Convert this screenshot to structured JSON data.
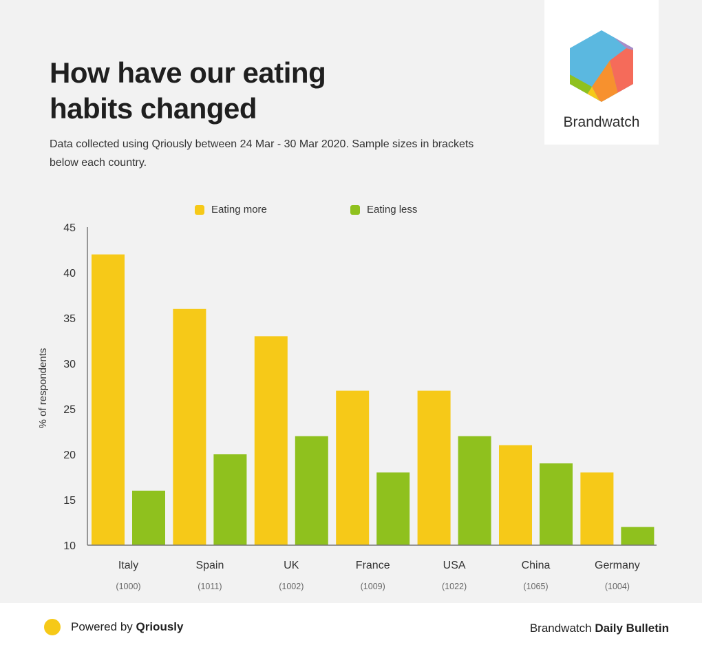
{
  "header": {
    "title_line1": "How have our eating",
    "title_line2": "habits changed",
    "subtitle": "Data collected using Qriously between 24 Mar - 30 Mar 2020. Sample sizes in brackets below each country."
  },
  "logo": {
    "text": "Brandwatch"
  },
  "footer": {
    "powered_prefix": "Powered by ",
    "powered_brand": "Qriously",
    "right_prefix": "Brandwatch ",
    "right_bold": "Daily Bulletin"
  },
  "colors": {
    "eating_more": "#f6c918",
    "eating_less": "#8fc11e"
  },
  "chart_data": {
    "type": "bar",
    "categories": [
      "Italy",
      "Spain",
      "UK",
      "France",
      "USA",
      "China",
      "Germany"
    ],
    "sample_sizes": [
      "(1000)",
      "(1011)",
      "(1002)",
      "(1009)",
      "(1022)",
      "(1065)",
      "(1004)"
    ],
    "series": [
      {
        "name": "Eating more",
        "values": [
          42,
          36,
          33,
          27,
          27,
          21,
          18
        ]
      },
      {
        "name": "Eating less",
        "values": [
          16,
          20,
          22,
          18,
          22,
          19,
          12
        ]
      }
    ],
    "ylabel": "% of respondents",
    "ylim": [
      10,
      45
    ],
    "yticks": [
      "10",
      "15",
      "20",
      "25",
      "30",
      "35",
      "40",
      "45"
    ],
    "grid": false,
    "legend": "top-center"
  }
}
